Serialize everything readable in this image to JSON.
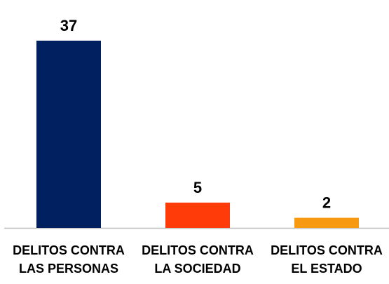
{
  "chart_data": {
    "type": "bar",
    "categories": [
      "DELITOS CONTRA LAS PERSONAS",
      "DELITOS CONTRA LA SOCIEDAD",
      "DELITOS CONTRA EL ESTADO"
    ],
    "values": [
      37,
      5,
      2
    ],
    "colors": [
      "#002060",
      "#ff3b0a",
      "#f79a12"
    ]
  }
}
